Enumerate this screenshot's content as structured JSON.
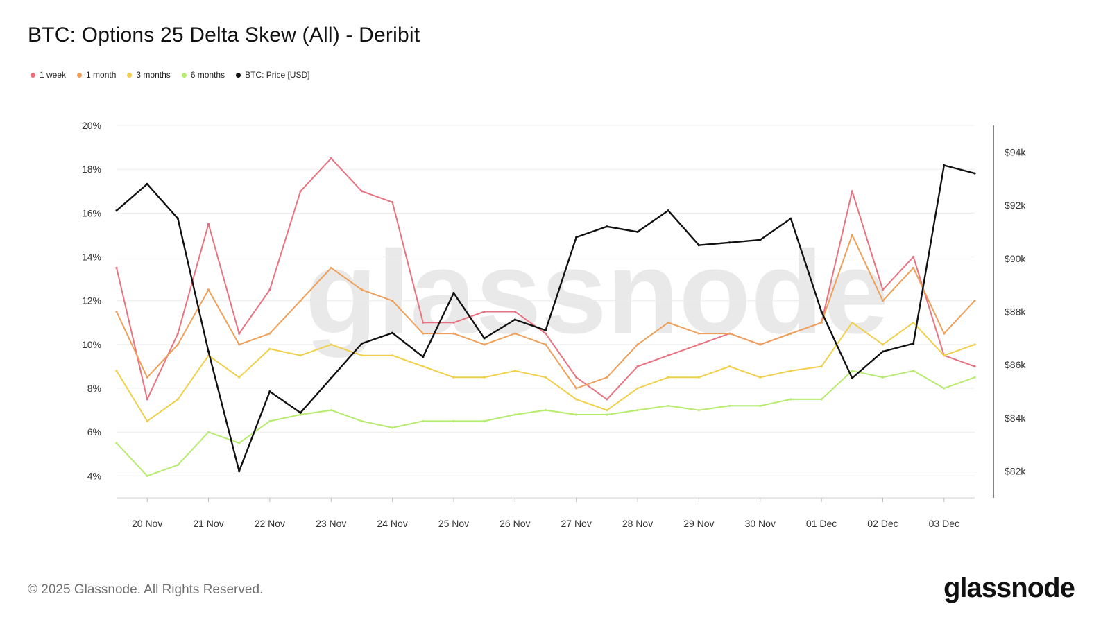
{
  "title": "BTC: Options 25 Delta Skew (All) - Deribit",
  "footer": "© 2025 Glassnode. All Rights Reserved.",
  "brand": "glassnode",
  "watermark": "glassnode",
  "legend": [
    {
      "label": "1 week",
      "color": "#e8727f"
    },
    {
      "label": "1 month",
      "color": "#eea05a"
    },
    {
      "label": "3 months",
      "color": "#f0d04a"
    },
    {
      "label": "6 months",
      "color": "#b6eb6e"
    },
    {
      "label": "BTC: Price [USD]",
      "color": "#111111"
    }
  ],
  "chart_data": {
    "type": "line",
    "title": "BTC: Options 25 Delta Skew (All) - Deribit",
    "x": [
      "19 Nov 12:00",
      "20 Nov 00:00",
      "20 Nov 12:00",
      "21 Nov 00:00",
      "21 Nov 12:00",
      "22 Nov 00:00",
      "22 Nov 12:00",
      "23 Nov 00:00",
      "23 Nov 12:00",
      "24 Nov 00:00",
      "24 Nov 12:00",
      "25 Nov 00:00",
      "25 Nov 12:00",
      "26 Nov 00:00",
      "26 Nov 12:00",
      "27 Nov 00:00",
      "27 Nov 12:00",
      "28 Nov 00:00",
      "28 Nov 12:00",
      "29 Nov 00:00",
      "29 Nov 12:00",
      "30 Nov 00:00",
      "30 Nov 12:00",
      "01 Dec 00:00",
      "01 Dec 12:00",
      "02 Dec 00:00",
      "02 Dec 12:00",
      "03 Dec 00:00",
      "03 Dec 12:00"
    ],
    "x_ticks": [
      "20 Nov",
      "21 Nov",
      "22 Nov",
      "23 Nov",
      "24 Nov",
      "25 Nov",
      "26 Nov",
      "27 Nov",
      "28 Nov",
      "29 Nov",
      "30 Nov",
      "01 Dec",
      "02 Dec",
      "03 Dec"
    ],
    "y_left": {
      "label": "",
      "ticks": [
        "4%",
        "6%",
        "8%",
        "10%",
        "12%",
        "14%",
        "16%",
        "18%",
        "20%"
      ],
      "range": [
        3,
        20
      ]
    },
    "y_right": {
      "label": "",
      "ticks": [
        "$82k",
        "$84k",
        "$86k",
        "$88k",
        "$90k",
        "$92k",
        "$94k"
      ],
      "range": [
        81000,
        95000
      ]
    },
    "grid": "horizontal",
    "legend_position": "top-left",
    "series": [
      {
        "name": "1 week",
        "axis": "left",
        "color": "#e8727f",
        "values": [
          13.5,
          7.5,
          10.5,
          15.5,
          10.5,
          12.5,
          17.0,
          18.5,
          17.0,
          16.5,
          11.0,
          11.0,
          11.5,
          11.5,
          10.5,
          8.5,
          7.5,
          9.0,
          9.5,
          10.0,
          10.5,
          10.0,
          10.5,
          11.0,
          17.0,
          12.5,
          14.0,
          9.5,
          9.0
        ]
      },
      {
        "name": "1 month",
        "axis": "left",
        "color": "#eea05a",
        "values": [
          11.5,
          8.5,
          10.0,
          12.5,
          10.0,
          10.5,
          12.0,
          13.5,
          12.5,
          12.0,
          10.5,
          10.5,
          10.0,
          10.5,
          10.0,
          8.0,
          8.5,
          10.0,
          11.0,
          10.5,
          10.5,
          10.0,
          10.5,
          11.0,
          15.0,
          12.0,
          13.5,
          10.5,
          12.0
        ]
      },
      {
        "name": "3 months",
        "axis": "left",
        "color": "#f0d04a",
        "values": [
          8.8,
          6.5,
          7.5,
          9.5,
          8.5,
          9.8,
          9.5,
          10.0,
          9.5,
          9.5,
          9.0,
          8.5,
          8.5,
          8.8,
          8.5,
          7.5,
          7.0,
          8.0,
          8.5,
          8.5,
          9.0,
          8.5,
          8.8,
          9.0,
          11.0,
          10.0,
          11.0,
          9.5,
          10.0
        ]
      },
      {
        "name": "6 months",
        "axis": "left",
        "color": "#b6eb6e",
        "values": [
          5.5,
          4.0,
          4.5,
          6.0,
          5.5,
          6.5,
          6.8,
          7.0,
          6.5,
          6.2,
          6.5,
          6.5,
          6.5,
          6.8,
          7.0,
          6.8,
          6.8,
          7.0,
          7.2,
          7.0,
          7.2,
          7.2,
          7.5,
          7.5,
          8.8,
          8.5,
          8.8,
          8.0,
          8.5
        ]
      },
      {
        "name": "BTC: Price [USD]",
        "axis": "right",
        "color": "#111111",
        "values": [
          91800,
          92800,
          91500,
          86500,
          82000,
          85000,
          84200,
          85500,
          86800,
          87200,
          86300,
          88700,
          87000,
          87700,
          87300,
          90800,
          91200,
          91000,
          91800,
          90500,
          90600,
          90700,
          91500,
          88000,
          85500,
          86500,
          86800,
          93500,
          93200
        ]
      }
    ]
  }
}
